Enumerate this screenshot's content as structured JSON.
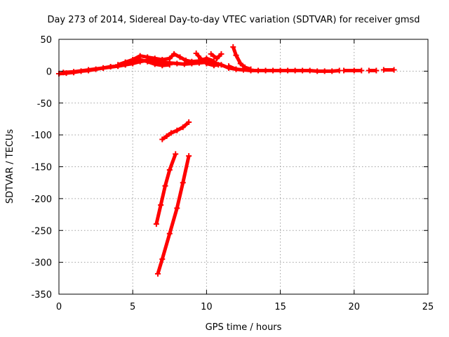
{
  "chart_data": {
    "type": "scatter",
    "title": "Day 273 of 2014, Sidereal Day-to-day VTEC variation (SDTVAR) for receiver gmsd",
    "xlabel": "GPS time / hours",
    "ylabel": "SDTVAR / TECUs",
    "xlim": [
      0,
      25
    ],
    "ylim": [
      -350,
      50
    ],
    "x_ticks": [
      "0",
      "5",
      "10",
      "15",
      "20",
      "25"
    ],
    "y_ticks": [
      "50",
      "0",
      "-50",
      "-100",
      "-150",
      "-200",
      "-250",
      "-300",
      "-350"
    ],
    "grid": true,
    "marker": "plus",
    "color": "#ff0000",
    "series": [
      {
        "points": [
          [
            0.0,
            -4
          ],
          [
            0.5,
            -3
          ],
          [
            1.0,
            -2
          ],
          [
            1.5,
            0
          ],
          [
            2.0,
            1
          ],
          [
            2.5,
            3
          ],
          [
            3.0,
            5
          ],
          [
            3.5,
            7
          ],
          [
            4.0,
            8
          ],
          [
            4.5,
            10
          ],
          [
            5.0,
            12
          ],
          [
            5.5,
            15
          ],
          [
            6.0,
            17
          ],
          [
            6.5,
            16
          ],
          [
            7.0,
            14
          ],
          [
            7.5,
            13
          ],
          [
            8.0,
            12
          ],
          [
            8.5,
            11
          ],
          [
            9.0,
            12
          ],
          [
            9.5,
            13
          ],
          [
            10.0,
            14
          ],
          [
            10.5,
            13
          ],
          [
            11.0,
            10
          ],
          [
            11.5,
            5
          ],
          [
            12.0,
            3
          ],
          [
            12.5,
            2
          ],
          [
            13.0,
            1
          ],
          [
            13.5,
            1
          ],
          [
            14.0,
            1
          ],
          [
            14.5,
            1
          ],
          [
            15.0,
            1
          ],
          [
            15.5,
            1
          ],
          [
            16.0,
            1
          ],
          [
            16.5,
            1
          ],
          [
            17.0,
            1
          ],
          [
            17.5,
            0
          ],
          [
            18.0,
            0
          ],
          [
            18.5,
            0
          ],
          [
            19.0,
            1
          ]
        ]
      },
      {
        "points": [
          [
            0.3,
            -2
          ],
          [
            1.0,
            -1
          ],
          [
            2.0,
            2
          ],
          [
            3.0,
            5
          ],
          [
            4.0,
            8
          ],
          [
            4.5,
            10
          ],
          [
            5.0,
            14
          ],
          [
            5.5,
            18
          ],
          [
            6.0,
            15
          ],
          [
            6.5,
            11
          ],
          [
            7.0,
            9
          ],
          [
            7.5,
            10
          ]
        ]
      },
      {
        "points": [
          [
            4.0,
            10
          ],
          [
            4.5,
            14
          ],
          [
            5.0,
            18
          ],
          [
            5.5,
            24
          ],
          [
            6.0,
            22
          ],
          [
            6.5,
            20
          ],
          [
            7.0,
            18
          ],
          [
            7.5,
            20
          ],
          [
            7.8,
            27
          ],
          [
            8.2,
            22
          ],
          [
            8.6,
            17
          ],
          [
            9.0,
            15
          ],
          [
            9.5,
            16
          ],
          [
            10.0,
            20
          ],
          [
            10.5,
            16
          ]
        ]
      },
      {
        "points": [
          [
            9.3,
            28
          ],
          [
            9.6,
            20
          ],
          [
            10.0,
            12
          ],
          [
            10.5,
            9
          ],
          [
            10.8,
            10
          ]
        ]
      },
      {
        "points": [
          [
            10.3,
            27
          ],
          [
            10.7,
            20
          ],
          [
            11.0,
            27
          ]
        ]
      },
      {
        "points": [
          [
            11.5,
            8
          ],
          [
            12.0,
            3
          ],
          [
            12.5,
            2
          ]
        ]
      },
      {
        "points": [
          [
            11.8,
            38
          ],
          [
            12.0,
            25
          ],
          [
            12.3,
            12
          ],
          [
            12.6,
            6
          ],
          [
            13.0,
            3
          ]
        ]
      },
      {
        "points": [
          [
            19.3,
            1
          ],
          [
            20.0,
            1
          ],
          [
            20.5,
            1
          ]
        ]
      },
      {
        "points": [
          [
            21.0,
            1
          ],
          [
            21.5,
            1
          ]
        ]
      },
      {
        "points": [
          [
            22.0,
            2
          ],
          [
            22.7,
            2
          ]
        ]
      },
      {
        "points": [
          [
            7.0,
            -107
          ],
          [
            7.3,
            -102
          ],
          [
            7.6,
            -97
          ],
          [
            8.0,
            -93
          ],
          [
            8.4,
            -88
          ],
          [
            8.8,
            -80
          ]
        ]
      },
      {
        "points": [
          [
            6.6,
            -240
          ],
          [
            6.9,
            -210
          ],
          [
            7.2,
            -180
          ],
          [
            7.5,
            -155
          ],
          [
            7.9,
            -130
          ]
        ]
      },
      {
        "points": [
          [
            6.7,
            -318
          ],
          [
            7.0,
            -295
          ],
          [
            7.5,
            -255
          ],
          [
            8.0,
            -215
          ],
          [
            8.4,
            -175
          ],
          [
            8.8,
            -133
          ]
        ]
      }
    ]
  }
}
